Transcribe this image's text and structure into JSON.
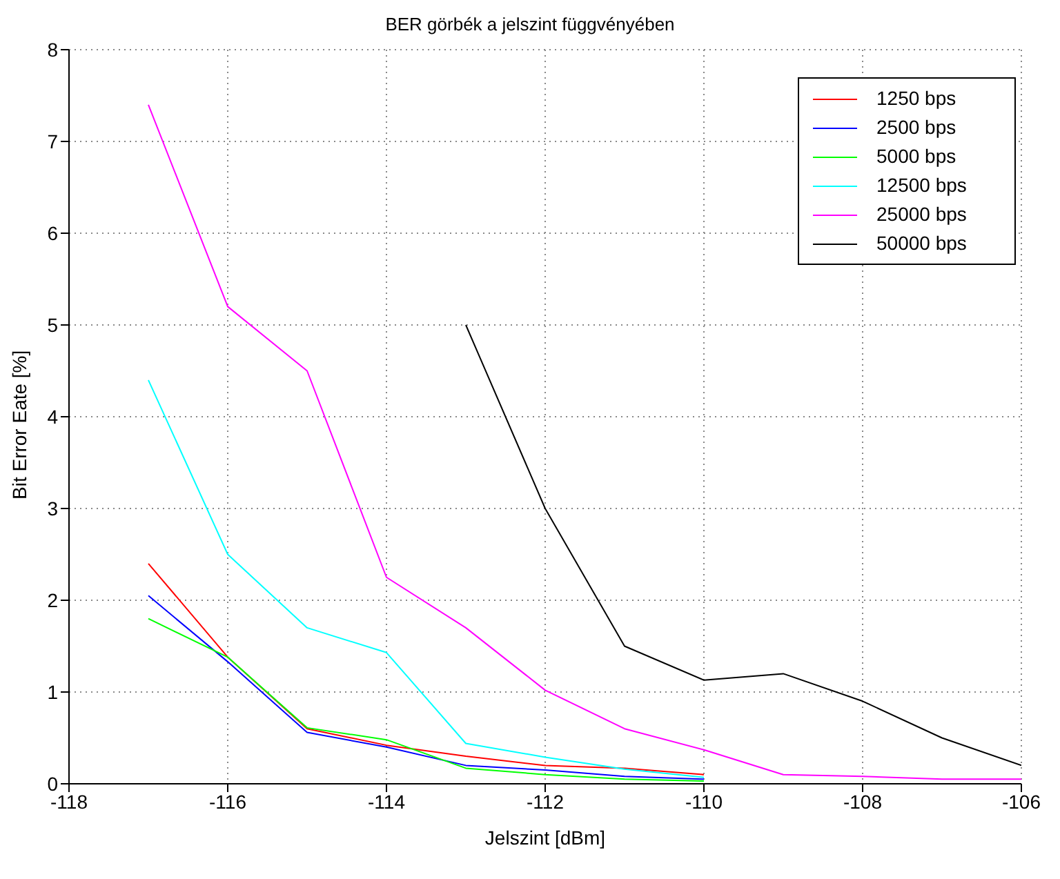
{
  "chart_data": {
    "type": "line",
    "title": "BER görbék a jelszint függvényében",
    "xlabel": "Jelszint [dBm]",
    "ylabel": "Bit Error Eate [%]",
    "xlim": [
      -118,
      -106
    ],
    "xticks": [
      -118,
      -116,
      -114,
      -112,
      -110,
      -108,
      -106
    ],
    "ylim": [
      0,
      8
    ],
    "yticks": [
      0,
      1,
      2,
      3,
      4,
      5,
      6,
      7,
      8
    ],
    "grid": true,
    "legend": "top right",
    "marker": "none",
    "line_style": "solid",
    "series": [
      {
        "name": "1250 bps",
        "color": "#ff0000",
        "x": [
          -117,
          -116,
          -115,
          -114,
          -113,
          -112,
          -111,
          -110
        ],
        "values": [
          2.4,
          1.38,
          0.6,
          0.42,
          0.3,
          0.2,
          0.17,
          0.1
        ]
      },
      {
        "name": "2500 bps",
        "color": "#0000ff",
        "x": [
          -117,
          -116,
          -115,
          -114,
          -113,
          -112,
          -111,
          -110
        ],
        "values": [
          2.05,
          1.33,
          0.56,
          0.4,
          0.2,
          0.15,
          0.08,
          0.05
        ]
      },
      {
        "name": "5000 bps",
        "color": "#00ff00",
        "x": [
          -117,
          -116,
          -115,
          -114,
          -113,
          -112,
          -111,
          -110
        ],
        "values": [
          1.8,
          1.38,
          0.61,
          0.48,
          0.17,
          0.1,
          0.05,
          0.03
        ]
      },
      {
        "name": "12500 bps",
        "color": "#00ffff",
        "x": [
          -117,
          -116,
          -115,
          -114,
          -113,
          -112,
          -111,
          -110
        ],
        "values": [
          4.4,
          2.5,
          1.7,
          1.43,
          0.44,
          0.29,
          0.16,
          0.07
        ]
      },
      {
        "name": "25000 bps",
        "color": "#ff00ff",
        "x": [
          -117,
          -116,
          -115,
          -114,
          -113,
          -112,
          -111,
          -110,
          -109,
          -108,
          -107,
          -106
        ],
        "values": [
          7.4,
          5.2,
          4.5,
          2.25,
          1.7,
          1.02,
          0.6,
          0.37,
          0.1,
          0.08,
          0.05,
          0.05
        ]
      },
      {
        "name": "50000 bps",
        "color": "#000000",
        "x": [
          -113,
          -112,
          -111,
          -110,
          -109,
          -108,
          -107,
          -106
        ],
        "values": [
          5.0,
          3.0,
          1.5,
          1.13,
          1.2,
          0.9,
          0.5,
          0.2
        ]
      }
    ]
  }
}
